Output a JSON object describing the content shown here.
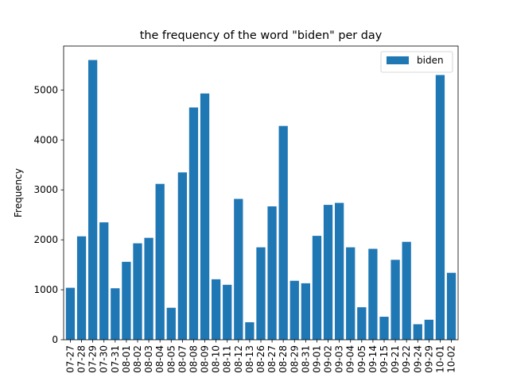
{
  "chart_data": {
    "type": "bar",
    "title": "the frequency of the word \"biden\" per day",
    "xlabel": "",
    "ylabel": "Frequency",
    "ylim": [
      0,
      5880
    ],
    "yticks": [
      0,
      1000,
      2000,
      3000,
      4000,
      5000
    ],
    "legend_position": "top-right",
    "grid": false,
    "categories": [
      "07-27",
      "07-28",
      "07-29",
      "07-30",
      "07-31",
      "08-01",
      "08-02",
      "08-03",
      "08-04",
      "08-05",
      "08-07",
      "08-08",
      "08-09",
      "08-10",
      "08-11",
      "08-12",
      "08-13",
      "08-26",
      "08-27",
      "08-28",
      "08-29",
      "08-31",
      "09-01",
      "09-02",
      "09-03",
      "09-04",
      "09-05",
      "09-14",
      "09-15",
      "09-21",
      "09-22",
      "09-24",
      "09-29",
      "10-01",
      "10-02"
    ],
    "series": [
      {
        "name": "biden",
        "color": "#1f77b4",
        "values": [
          1040,
          2070,
          5600,
          2350,
          1030,
          1560,
          1930,
          2040,
          3120,
          640,
          3350,
          4650,
          4930,
          1210,
          1100,
          2820,
          350,
          1850,
          2670,
          4280,
          1180,
          1130,
          2080,
          2700,
          2740,
          1850,
          650,
          1820,
          460,
          1600,
          1960,
          310,
          400,
          5300,
          1340
        ]
      }
    ]
  }
}
